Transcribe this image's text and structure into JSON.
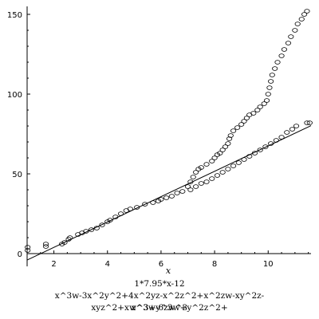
{
  "chart_data": {
    "type": "scatter",
    "xlabel": "x",
    "xlim": [
      1,
      11.6
    ],
    "ylim": [
      -8,
      155
    ],
    "x_ticks": [
      2,
      4,
      6,
      8,
      10
    ],
    "y_ticks": [
      0,
      50,
      100,
      150
    ],
    "reference_line": {
      "slope": 7.95,
      "intercept": -12
    },
    "series": [
      {
        "values": [
          [
            1.02,
            2
          ],
          [
            1.02,
            4
          ],
          [
            1.7,
            4.5
          ],
          [
            1.7,
            6
          ],
          [
            2.3,
            6
          ],
          [
            2.4,
            7
          ],
          [
            2.55,
            9
          ],
          [
            2.6,
            10
          ],
          [
            2.9,
            12
          ],
          [
            3.05,
            13
          ],
          [
            3.2,
            14
          ],
          [
            3.4,
            15
          ],
          [
            3.6,
            16
          ],
          [
            3.8,
            18
          ],
          [
            4.0,
            20
          ],
          [
            4.1,
            21
          ],
          [
            4.3,
            23
          ],
          [
            4.5,
            25
          ],
          [
            4.7,
            27
          ],
          [
            4.85,
            28
          ],
          [
            5.1,
            29
          ],
          [
            5.4,
            31
          ],
          [
            5.7,
            32
          ],
          [
            5.9,
            33
          ],
          [
            6.0,
            34
          ],
          [
            6.2,
            35
          ],
          [
            6.4,
            36
          ],
          [
            6.6,
            38
          ],
          [
            6.8,
            39
          ],
          [
            7.0,
            42
          ],
          [
            7.1,
            45
          ],
          [
            7.2,
            48
          ],
          [
            7.3,
            51
          ],
          [
            7.4,
            53
          ],
          [
            7.5,
            54
          ],
          [
            7.7,
            56
          ],
          [
            7.9,
            58
          ],
          [
            8.0,
            60
          ],
          [
            8.1,
            62
          ],
          [
            8.2,
            63
          ],
          [
            8.3,
            65
          ],
          [
            8.4,
            67
          ],
          [
            8.5,
            69
          ],
          [
            8.55,
            72
          ],
          [
            8.6,
            74
          ],
          [
            8.7,
            77
          ],
          [
            8.85,
            79
          ],
          [
            9.0,
            81
          ],
          [
            9.1,
            83
          ],
          [
            9.2,
            85
          ],
          [
            9.3,
            87
          ],
          [
            9.45,
            88
          ],
          [
            9.6,
            90
          ],
          [
            9.7,
            92
          ],
          [
            9.85,
            94
          ],
          [
            9.95,
            96
          ],
          [
            10.0,
            100
          ],
          [
            10.05,
            104
          ],
          [
            10.1,
            108
          ],
          [
            10.15,
            112
          ],
          [
            10.25,
            116
          ],
          [
            10.35,
            120
          ],
          [
            10.5,
            124
          ],
          [
            10.6,
            128
          ],
          [
            10.75,
            132
          ],
          [
            10.85,
            136
          ],
          [
            11.0,
            140
          ],
          [
            11.1,
            144
          ],
          [
            11.25,
            147
          ],
          [
            11.35,
            150
          ],
          [
            11.45,
            152
          ]
        ]
      },
      {
        "values": [
          [
            7.1,
            40
          ],
          [
            7.3,
            42
          ],
          [
            7.5,
            44
          ],
          [
            7.7,
            45
          ],
          [
            7.9,
            47
          ],
          [
            8.1,
            49
          ],
          [
            8.3,
            51
          ],
          [
            8.5,
            53
          ],
          [
            8.7,
            55
          ],
          [
            8.9,
            57
          ],
          [
            9.1,
            59
          ],
          [
            9.3,
            61
          ],
          [
            9.5,
            63
          ],
          [
            9.7,
            65
          ],
          [
            9.9,
            67
          ],
          [
            10.1,
            69
          ],
          [
            10.3,
            71
          ],
          [
            10.5,
            73
          ],
          [
            10.7,
            76
          ],
          [
            10.9,
            78
          ],
          [
            11.05,
            80
          ],
          [
            11.45,
            82
          ],
          [
            11.55,
            82
          ]
        ]
      }
    ]
  },
  "caption": {
    "line1": "1*7.95*x-12",
    "line2": "x^3w-3x^2y^2+4x^2yz-x^2z^2+x^2zw-xy^2z-xyz^2+xw^3+y^3w+y^2z^2+",
    "line3": "z^3w-6zw^3"
  }
}
